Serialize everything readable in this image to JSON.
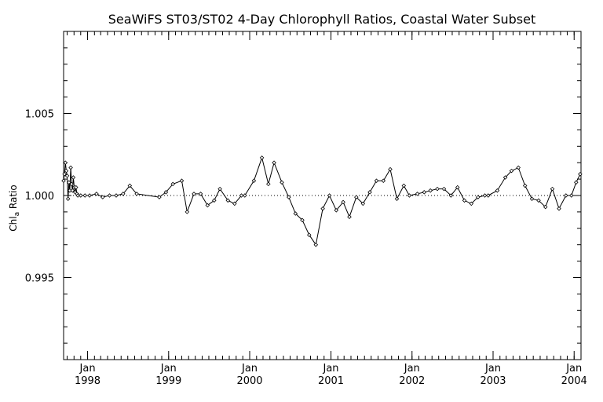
{
  "chart_data": {
    "type": "line",
    "title": "SeaWiFS ST03/ST02 4-Day Chlorophyll Ratios, Coastal Water Subset",
    "xlabel": "",
    "ylabel_main": "Chl",
    "ylabel_sub": "a",
    "ylabel_rest": " Ratio",
    "ylim": [
      0.99,
      1.01
    ],
    "xlim": [
      "1997-09-15",
      "2004-02-01"
    ],
    "reference_line": 1.0,
    "grid": false,
    "y_ticks": [
      {
        "value": 0.995,
        "label": "0.995"
      },
      {
        "value": 1.0,
        "label": "1.000"
      },
      {
        "value": 1.005,
        "label": "1.005"
      }
    ],
    "x_ticks": [
      {
        "date": "1998-01-01",
        "month": "Jan",
        "year": "1998"
      },
      {
        "date": "1999-01-01",
        "month": "Jan",
        "year": "1999"
      },
      {
        "date": "2000-01-01",
        "month": "Jan",
        "year": "2000"
      },
      {
        "date": "2001-01-01",
        "month": "Jan",
        "year": "2001"
      },
      {
        "date": "2002-01-01",
        "month": "Jan",
        "year": "2002"
      },
      {
        "date": "2003-01-01",
        "month": "Jan",
        "year": "2003"
      },
      {
        "date": "2004-01-01",
        "month": "Jan",
        "year": "2004"
      }
    ],
    "series": [
      {
        "points": [
          [
            "1997-09-15",
            1.0009
          ],
          [
            "1997-09-19",
            1.0013
          ],
          [
            "1997-09-23",
            1.002
          ],
          [
            "1997-09-27",
            1.0015
          ],
          [
            "1997-10-01",
            1.0012
          ],
          [
            "1997-10-05",
            0.9998
          ],
          [
            "1997-10-09",
            1.0008
          ],
          [
            "1997-10-13",
            1.0003
          ],
          [
            "1997-10-17",
            1.0017
          ],
          [
            "1997-10-21",
            1.0007
          ],
          [
            "1997-10-25",
            1.0003
          ],
          [
            "1997-10-29",
            1.0011
          ],
          [
            "1997-11-02",
            1.0005
          ],
          [
            "1997-11-06",
            1.0002
          ],
          [
            "1997-11-10",
            1.0005
          ],
          [
            "1997-11-14",
            1.0001
          ],
          [
            "1997-11-18",
            1.0
          ],
          [
            "1997-12-01",
            1.0
          ],
          [
            "1997-12-20",
            1.0
          ],
          [
            "1998-01-10",
            1.0
          ],
          [
            "1998-02-10",
            1.0001
          ],
          [
            "1998-03-10",
            0.9999
          ],
          [
            "1998-04-10",
            1.0
          ],
          [
            "1998-05-10",
            1.0
          ],
          [
            "1998-06-10",
            1.0001
          ],
          [
            "1998-07-10",
            1.0006
          ],
          [
            "1998-08-10",
            1.0001
          ],
          [
            "1998-11-20",
            0.9999
          ],
          [
            "1998-12-20",
            1.0002
          ],
          [
            "1999-01-20",
            1.0007
          ],
          [
            "1999-03-01",
            1.0009
          ],
          [
            "1999-03-25",
            0.999
          ],
          [
            "1999-04-25",
            1.0001
          ],
          [
            "1999-05-25",
            1.0001
          ],
          [
            "1999-06-25",
            0.9994
          ],
          [
            "1999-07-25",
            0.9997
          ],
          [
            "1999-08-20",
            1.0004
          ],
          [
            "1999-09-25",
            0.9997
          ],
          [
            "1999-10-25",
            0.9995
          ],
          [
            "1999-11-25",
            1.0
          ],
          [
            "1999-12-10",
            1.0
          ],
          [
            "2000-01-20",
            1.0009
          ],
          [
            "2000-02-25",
            1.0023
          ],
          [
            "2000-03-25",
            1.0007
          ],
          [
            "2000-04-20",
            1.002
          ],
          [
            "2000-05-25",
            1.0008
          ],
          [
            "2000-06-25",
            0.9999
          ],
          [
            "2000-07-25",
            0.9989
          ],
          [
            "2000-08-25",
            0.9985
          ],
          [
            "2000-09-25",
            0.9976
          ],
          [
            "2000-10-25",
            0.997
          ],
          [
            "2000-11-25",
            0.9992
          ],
          [
            "2000-12-25",
            1.0
          ],
          [
            "2001-01-25",
            0.9991
          ],
          [
            "2001-02-25",
            0.9996
          ],
          [
            "2001-03-25",
            0.9987
          ],
          [
            "2001-04-25",
            0.9999
          ],
          [
            "2001-05-25",
            0.9995
          ],
          [
            "2001-06-25",
            1.0002
          ],
          [
            "2001-07-25",
            1.0009
          ],
          [
            "2001-08-25",
            1.0009
          ],
          [
            "2001-09-25",
            1.0016
          ],
          [
            "2001-10-25",
            0.9998
          ],
          [
            "2001-11-25",
            1.0006
          ],
          [
            "2001-12-20",
            1.0
          ],
          [
            "2002-01-25",
            1.0001
          ],
          [
            "2002-02-25",
            1.0002
          ],
          [
            "2002-03-25",
            1.0003
          ],
          [
            "2002-04-25",
            1.0004
          ],
          [
            "2002-05-25",
            1.0004
          ],
          [
            "2002-06-25",
            1.0
          ],
          [
            "2002-07-25",
            1.0005
          ],
          [
            "2002-08-25",
            0.9997
          ],
          [
            "2002-09-25",
            0.9995
          ],
          [
            "2002-10-25",
            0.9999
          ],
          [
            "2002-11-25",
            1.0
          ],
          [
            "2002-12-10",
            1.0
          ],
          [
            "2003-01-20",
            1.0003
          ],
          [
            "2003-02-25",
            1.0011
          ],
          [
            "2003-03-25",
            1.0015
          ],
          [
            "2003-04-25",
            1.0017
          ],
          [
            "2003-05-25",
            1.0006
          ],
          [
            "2003-06-25",
            0.9998
          ],
          [
            "2003-07-25",
            0.9997
          ],
          [
            "2003-08-25",
            0.9993
          ],
          [
            "2003-09-25",
            1.0004
          ],
          [
            "2003-10-25",
            0.9992
          ],
          [
            "2003-11-25",
            1.0
          ],
          [
            "2003-12-20",
            1.0
          ],
          [
            "2004-01-10",
            1.0008
          ],
          [
            "2004-01-28",
            1.0013
          ]
        ]
      }
    ]
  }
}
